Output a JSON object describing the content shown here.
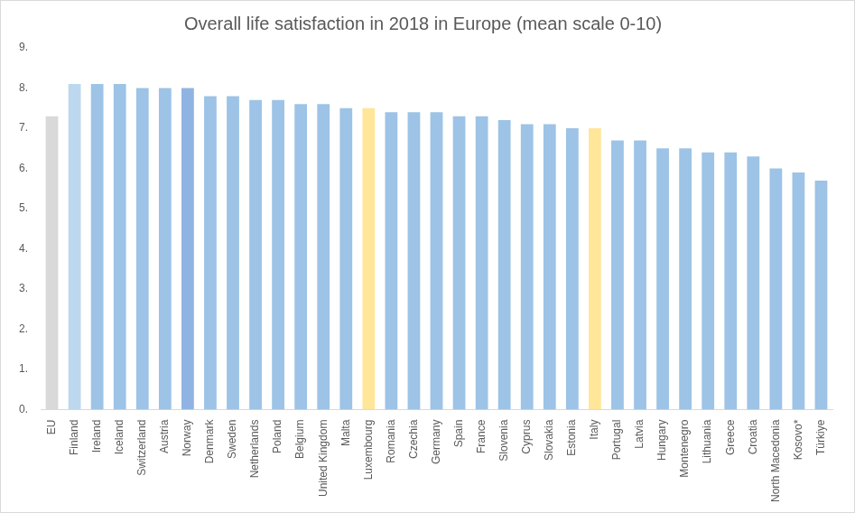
{
  "chart_data": {
    "type": "bar",
    "title": "Overall life satisfaction in 2018 in Europe (mean scale 0-10)",
    "categories": [
      "EU",
      "Finland",
      "Ireland",
      "Iceland",
      "Switzerland",
      "Austria",
      "Norway",
      "Denmark",
      "Sweden",
      "Netherlands",
      "Poland",
      "Belgium",
      "United Kingdom",
      "Malta",
      "Luxembourg",
      "Romania",
      "Czechia",
      "Germany",
      "Spain",
      "France",
      "Slovenia",
      "Cyprus",
      "Slovakia",
      "Estonia",
      "Italy",
      "Portugal",
      "Latvia",
      "Hungary",
      "Montenegro",
      "Lithuania",
      "Greece",
      "Croatia",
      "North Macedonia",
      "Kosovo*",
      "Türkiye"
    ],
    "values": [
      7.3,
      8.1,
      8.1,
      8.1,
      8.0,
      8.0,
      8.0,
      7.8,
      7.8,
      7.7,
      7.7,
      7.6,
      7.6,
      7.5,
      7.5,
      7.4,
      7.4,
      7.4,
      7.3,
      7.3,
      7.2,
      7.1,
      7.1,
      7.0,
      7.0,
      6.7,
      6.7,
      6.5,
      6.5,
      6.4,
      6.4,
      6.3,
      6.0,
      5.9,
      5.7
    ],
    "colors": [
      "#d9d9d9",
      "#bdd7ee",
      "#9dc3e6",
      "#9dc3e6",
      "#9dc3e6",
      "#9dc3e6",
      "#8fb4e3",
      "#9dc3e6",
      "#9dc3e6",
      "#9dc3e6",
      "#9dc3e6",
      "#9dc3e6",
      "#9dc3e6",
      "#9dc3e6",
      "#ffe699",
      "#9dc3e6",
      "#9dc3e6",
      "#9dc3e6",
      "#9dc3e6",
      "#9dc3e6",
      "#9dc3e6",
      "#9dc3e6",
      "#9dc3e6",
      "#9dc3e6",
      "#ffe699",
      "#9dc3e6",
      "#9dc3e6",
      "#9dc3e6",
      "#9dc3e6",
      "#9dc3e6",
      "#9dc3e6",
      "#9dc3e6",
      "#9dc3e6",
      "#9dc3e6",
      "#9dc3e6"
    ],
    "ylim": [
      0,
      9
    ],
    "yticks": [
      {
        "value": 0,
        "label": "0."
      },
      {
        "value": 1,
        "label": "1."
      },
      {
        "value": 2,
        "label": "2."
      },
      {
        "value": 3,
        "label": "3."
      },
      {
        "value": 4,
        "label": "4."
      },
      {
        "value": 5,
        "label": "5."
      },
      {
        "value": 6,
        "label": "6."
      },
      {
        "value": 7,
        "label": "7."
      },
      {
        "value": 8,
        "label": "8."
      },
      {
        "value": 9,
        "label": "9."
      }
    ],
    "grid": false
  }
}
